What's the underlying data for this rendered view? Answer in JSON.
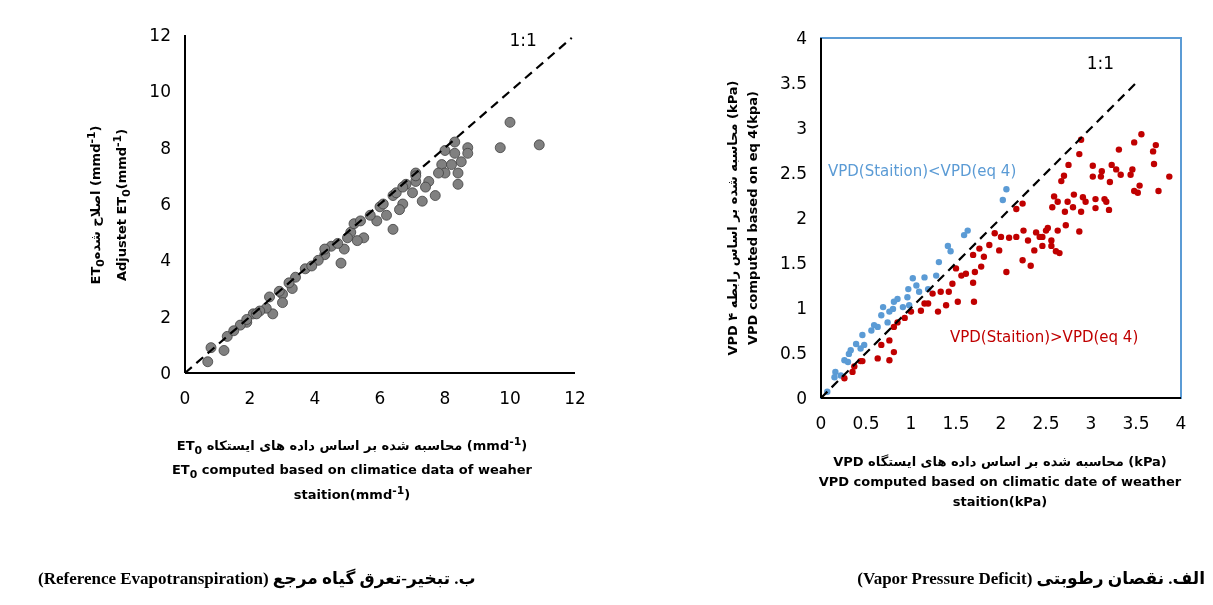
{
  "chart_data": [
    {
      "type": "scatter",
      "title": "الف. نقصان رطوبتی (Vapor Pressure Deficit)",
      "xlabel": "VPD محاسبه شده بر اساس داده های ایستگاه (kPa)\nVPD computed based on climatic date of weather staition(kPa)",
      "ylabel": "VPD محاسبه شده بر اساس رابطه ۴ (kPa)\nVPD computed based on eq 4(kpa)",
      "marker": "circle",
      "xlim": [
        0,
        4
      ],
      "ylim": [
        0,
        4
      ],
      "xticks": [
        0,
        0.5,
        1,
        1.5,
        2,
        2.5,
        3,
        3.5,
        4
      ],
      "yticks": [
        0,
        0.5,
        1,
        1.5,
        2,
        2.5,
        3,
        3.5,
        4
      ],
      "series": [
        {
          "name": "VPD(Staition)<VPD(eq 4)",
          "type": "scatter",
          "color": "#5b9bd5",
          "x": [
            0.07,
            0.16,
            0.15,
            0.22,
            0.26,
            0.3,
            0.31,
            0.33,
            0.39,
            0.44,
            0.48,
            0.46,
            0.56,
            0.59,
            0.63,
            0.67,
            0.74,
            0.76,
            0.69,
            0.81,
            0.85,
            0.91,
            0.96,
            0.98,
            1.02,
            1.06,
            1.15,
            1.19,
            1.09,
            1.28,
            1.31,
            1.41,
            1.44,
            1.59,
            1.63,
            2.02,
            2.06,
            0.97,
            0.8
          ],
          "values": [
            0.07,
            0.29,
            0.23,
            0.25,
            0.42,
            0.4,
            0.49,
            0.53,
            0.6,
            0.55,
            0.59,
            0.7,
            0.75,
            0.81,
            0.79,
            0.92,
            0.84,
            0.96,
            1.01,
            1.07,
            1.1,
            1.01,
            1.12,
            1.03,
            1.33,
            1.25,
            1.34,
            1.21,
            1.18,
            1.36,
            1.51,
            1.69,
            1.63,
            1.81,
            1.86,
            2.2,
            2.32,
            1.21,
            0.99
          ]
        },
        {
          "name": "VPD(Staition)>VPD(eq 4)",
          "type": "scatter",
          "color": "#c00000",
          "x": [
            0.26,
            0.35,
            0.37,
            0.44,
            0.46,
            0.63,
            0.76,
            0.81,
            0.67,
            0.76,
            0.85,
            0.81,
            0.93,
            1.0,
            1.11,
            1.15,
            1.19,
            1.3,
            1.24,
            1.33,
            1.39,
            1.42,
            1.46,
            1.5,
            1.56,
            1.61,
            1.52,
            1.69,
            1.7,
            1.71,
            1.78,
            1.81,
            1.69,
            1.76,
            1.87,
            1.98,
            1.93,
            2.0,
            2.09,
            2.06,
            2.17,
            2.17,
            2.24,
            2.25,
            2.3,
            2.24,
            2.33,
            2.37,
            2.39,
            2.43,
            2.46,
            2.5,
            2.52,
            2.56,
            2.46,
            2.56,
            2.61,
            2.65,
            2.63,
            2.72,
            2.59,
            2.57,
            2.67,
            2.7,
            2.75,
            2.63,
            2.71,
            2.74,
            2.81,
            2.8,
            2.87,
            2.87,
            2.89,
            2.89,
            2.91,
            2.94,
            3.02,
            3.02,
            3.05,
            3.05,
            3.12,
            3.11,
            3.15,
            3.17,
            3.2,
            3.21,
            3.23,
            3.28,
            3.31,
            3.33,
            3.44,
            3.46,
            3.48,
            3.48,
            3.52,
            3.54,
            3.56,
            3.69,
            3.7,
            3.72,
            3.75,
            3.87
          ],
          "values": [
            0.22,
            0.29,
            0.35,
            0.41,
            0.41,
            0.44,
            0.42,
            0.51,
            0.59,
            0.64,
            0.84,
            0.79,
            0.89,
            0.96,
            0.97,
            1.05,
            1.05,
            0.96,
            1.16,
            1.18,
            1.03,
            1.18,
            1.27,
            1.44,
            1.36,
            1.38,
            1.07,
            1.28,
            1.07,
            1.4,
            1.46,
            1.57,
            1.59,
            1.66,
            1.7,
            1.64,
            1.83,
            1.79,
            1.78,
            1.4,
            1.79,
            2.1,
            2.16,
            1.86,
            1.75,
            1.53,
            1.47,
            1.64,
            1.84,
            1.79,
            1.79,
            1.86,
            1.89,
            1.75,
            1.69,
            1.69,
            1.63,
            1.61,
            1.86,
            1.92,
            2.24,
            2.12,
            2.41,
            2.47,
            2.59,
            2.18,
            2.07,
            2.18,
            2.26,
            2.12,
            1.85,
            2.71,
            2.87,
            2.07,
            2.23,
            2.18,
            2.58,
            2.46,
            2.21,
            2.11,
            2.52,
            2.46,
            2.21,
            2.18,
            2.09,
            2.4,
            2.59,
            2.54,
            2.76,
            2.48,
            2.48,
            2.54,
            2.84,
            2.3,
            2.28,
            2.36,
            2.93,
            2.74,
            2.6,
            2.81,
            2.3,
            2.46
          ]
        },
        {
          "name": "1:1",
          "type": "line",
          "marker": "none",
          "line_style": "dashed",
          "color": "#000000",
          "x": [
            0,
            3.5
          ],
          "values": [
            0,
            3.5
          ]
        }
      ]
    },
    {
      "type": "scatter",
      "title": "ب. تبخیر-تعرق گیاه مرجع (Reference Evapotranspiration)",
      "xlabel": "ET$_{0}$ محاسبه شده بر اساس داده های ایستکاه (mmd$^{-1}$)\nET$_{0}$ computed based on climatice data of weaher staition(mmd$^{-1}$)",
      "ylabel": "ET$_{0}$اصلاح شده (mmd$^{-1}$)\nAdjustet ET$_{0}$(mmd$^{-1}$)",
      "marker": "circle",
      "xlim": [
        0,
        12
      ],
      "ylim": [
        0,
        12
      ],
      "xticks": [
        0,
        2,
        4,
        6,
        8,
        10,
        12
      ],
      "yticks": [
        0,
        2,
        4,
        6,
        8,
        10,
        12
      ],
      "series": [
        {
          "type": "scatter",
          "color": "#808080",
          "x": [
            10.0,
            9.7,
            10.9,
            0.7,
            0.8,
            1.2,
            1.3,
            4.8,
            6.4,
            8.4,
            8.3,
            8.0,
            8.7,
            8.7,
            8.3,
            8.5,
            7.9,
            8.2,
            8.4,
            8.0,
            7.8,
            7.7,
            7.3,
            7.5,
            7.1,
            7.1,
            6.8,
            6.7,
            6.4,
            6.5,
            6.0,
            5.9,
            5.7,
            5.5,
            5.3,
            5.1,
            4.9,
            4.5,
            4.3,
            4.1,
            3.7,
            3.4,
            3.3,
            3.0,
            3.0,
            2.7,
            2.5,
            2.3,
            2.1,
            1.9,
            1.7,
            1.5,
            2.6,
            3.9,
            4.7,
            5.2,
            6.1,
            6.7,
            7.1,
            7.4,
            7.0,
            6.2,
            6.6,
            5.0,
            5.4,
            4.3,
            3.2,
            2.9,
            2.2,
            1.9
          ],
          "values": [
            8.9,
            8.0,
            8.1,
            0.4,
            0.9,
            0.8,
            1.3,
            3.9,
            5.1,
            6.7,
            8.2,
            7.9,
            8.0,
            7.8,
            7.8,
            7.5,
            7.4,
            7.4,
            7.1,
            7.1,
            7.1,
            6.3,
            6.1,
            6.8,
            7.1,
            6.8,
            6.7,
            6.0,
            6.3,
            6.4,
            5.9,
            5.4,
            5.6,
            4.8,
            4.7,
            5.0,
            4.4,
            4.5,
            4.2,
            4.0,
            3.7,
            3.4,
            3.0,
            2.8,
            2.5,
            2.1,
            2.3,
            2.2,
            2.1,
            1.8,
            1.7,
            1.5,
            2.7,
            3.8,
            4.6,
            5.3,
            6.0,
            6.6,
            7.0,
            6.6,
            6.4,
            5.6,
            5.8,
            4.8,
            5.4,
            4.4,
            3.2,
            2.9,
            2.1,
            1.9
          ]
        },
        {
          "name": "1:1",
          "type": "line",
          "marker": "none",
          "line_style": "dashed",
          "color": "#000000",
          "x": [
            0,
            11.9
          ],
          "values": [
            0,
            11.9
          ]
        }
      ]
    }
  ]
}
